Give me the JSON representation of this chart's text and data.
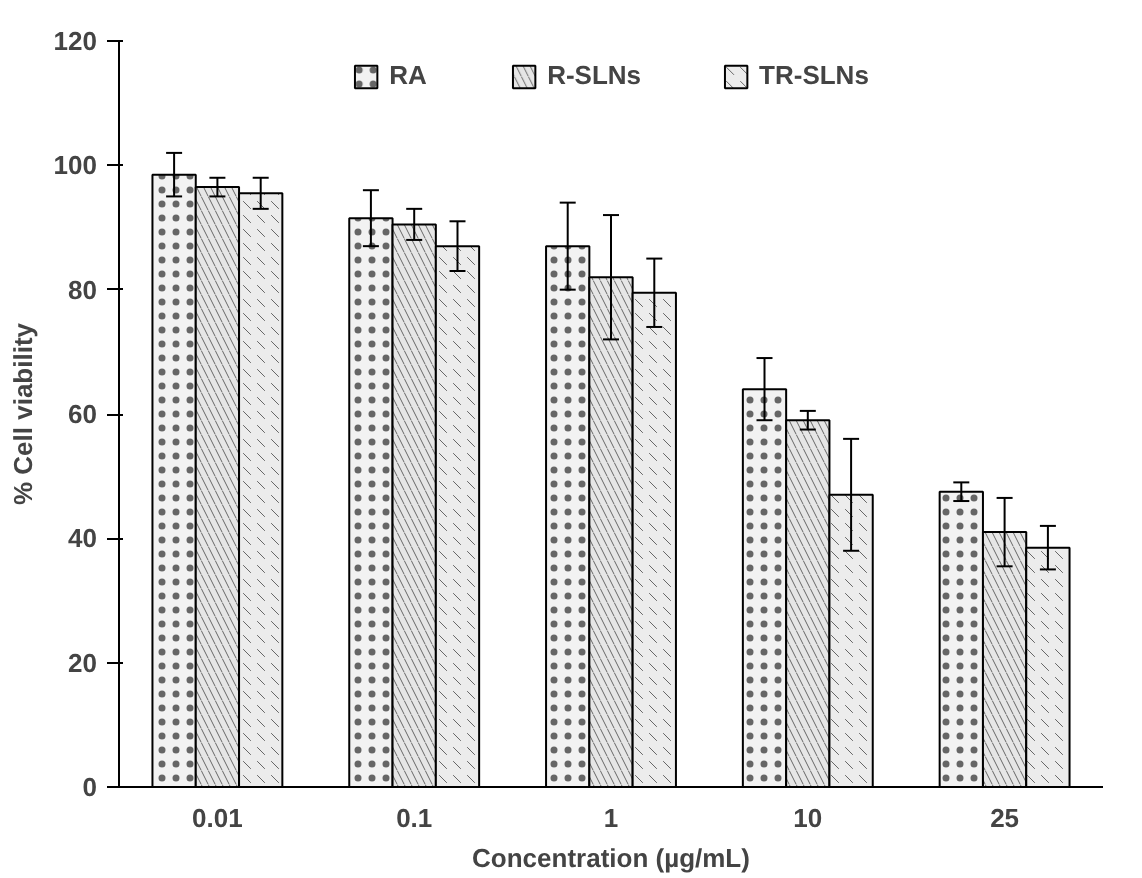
{
  "chart_data": {
    "type": "bar",
    "xlabel": "Concentration (µg/mL)",
    "ylabel": "% Cell viability",
    "categories": [
      "0.01",
      "0.1",
      "1",
      "10",
      "25"
    ],
    "series": [
      {
        "name": "RA",
        "color": "#f2f2f2",
        "values": [
          98.5,
          91.5,
          87,
          64,
          47.5
        ],
        "errors": [
          3.5,
          4.5,
          7,
          5,
          1.5
        ]
      },
      {
        "name": "R-SLNs",
        "color": "#e6e6e6",
        "values": [
          96.5,
          90.5,
          82,
          59,
          41
        ],
        "errors": [
          1.5,
          2.5,
          10,
          1.5,
          5.5
        ]
      },
      {
        "name": "TR-SLNs",
        "color": "#ececec",
        "values": [
          95.5,
          87,
          79.5,
          47,
          38.5
        ],
        "errors": [
          2.5,
          4,
          5.5,
          9,
          3.5
        ]
      }
    ],
    "ylim": [
      0,
      120
    ],
    "yticks": [
      0,
      20,
      40,
      60,
      80,
      100,
      120
    ],
    "grid": false,
    "legend": "top"
  }
}
